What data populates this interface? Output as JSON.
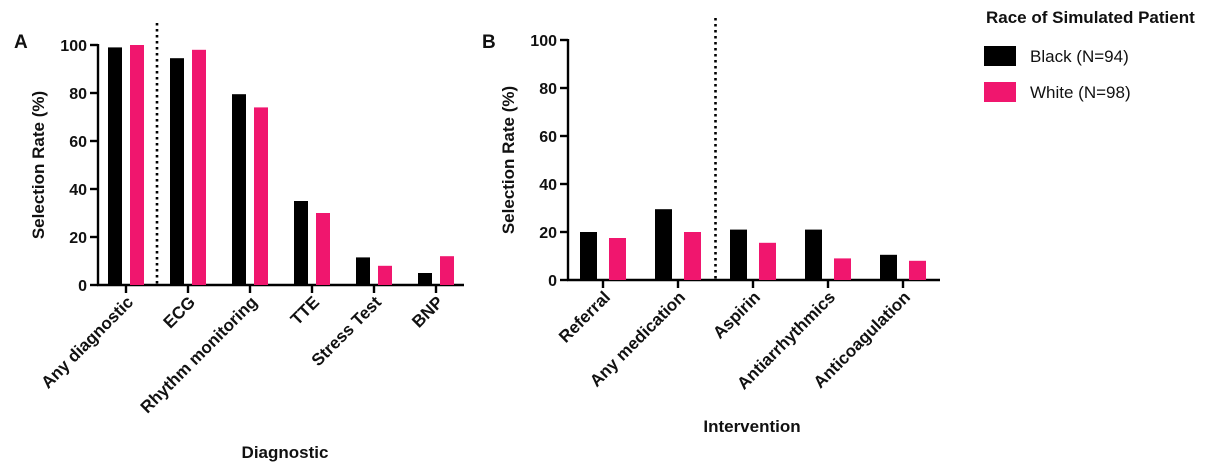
{
  "legend": {
    "title": "Race of Simulated Patient",
    "entries": [
      {
        "label": "Black (N=94)",
        "color": "#000000"
      },
      {
        "label": "White (N=98)",
        "color": "#f0166e"
      }
    ]
  },
  "chart_data": [
    {
      "type": "bar",
      "panel_label": "A",
      "xlabel": "Diagnostic",
      "ylabel": "Selection Rate (%)",
      "ylim": [
        0,
        100
      ],
      "yticks": [
        "0",
        "20",
        "40",
        "60",
        "80",
        "100"
      ],
      "categories": [
        "Any diagnostic",
        "ECG",
        "Rhythm monitoring",
        "TTE",
        "Stress Test",
        "BNP"
      ],
      "series": [
        {
          "name": "Black (N=94)",
          "color": "#000000",
          "values": [
            99,
            94.5,
            79.5,
            35,
            11.5,
            5
          ]
        },
        {
          "name": "White (N=98)",
          "color": "#f0166e",
          "values": [
            100,
            98,
            74,
            30,
            8,
            12
          ]
        }
      ],
      "divider_after_index": 0
    },
    {
      "type": "bar",
      "panel_label": "B",
      "xlabel": "Intervention",
      "ylabel": "Selection Rate (%)",
      "ylim": [
        0,
        100
      ],
      "yticks": [
        "0",
        "20",
        "40",
        "60",
        "80",
        "100"
      ],
      "categories": [
        "Referral",
        "Any medication",
        "Aspirin",
        "Antiarrhythmics",
        "Anticoagulation"
      ],
      "series": [
        {
          "name": "Black (N=94)",
          "color": "#000000",
          "values": [
            20,
            29.5,
            21,
            21,
            10.5
          ]
        },
        {
          "name": "White (N=98)",
          "color": "#f0166e",
          "values": [
            17.5,
            20,
            15.5,
            9,
            8
          ]
        }
      ],
      "divider_after_index": 1
    }
  ]
}
